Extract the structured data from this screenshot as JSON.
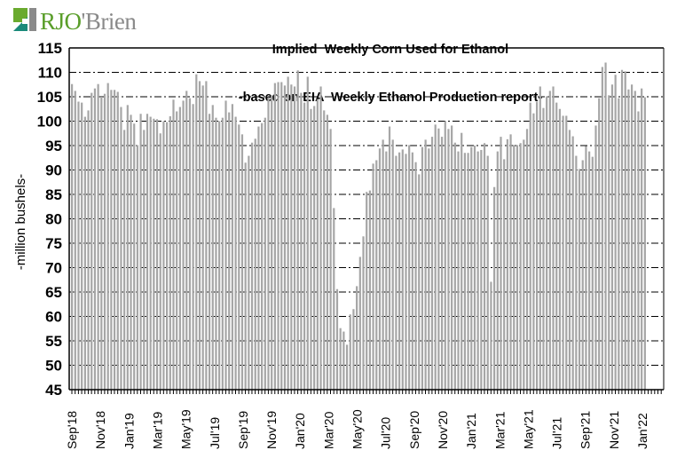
{
  "brand": {
    "logo_text_green": "RJO",
    "logo_text_gray": "'Brien",
    "green": "#5a9e2a",
    "teal": "#1a8a7a"
  },
  "chart_data": {
    "type": "bar",
    "title": "Implied  Weekly Corn Used for Ethanol",
    "subtitle": "-based on EIA  Weekly Ethanol Production report-",
    "xlabel": "",
    "ylabel": "-million bushels-",
    "ylim": [
      45,
      115
    ],
    "yticks": [
      45,
      50,
      55,
      60,
      65,
      70,
      75,
      80,
      85,
      90,
      95,
      100,
      105,
      110,
      115
    ],
    "grid": true,
    "bar_color": "#a6a6a6",
    "x_tick_labels": [
      "Sep'18",
      "Nov'18",
      "Jan'19",
      "Mar'19",
      "May'19",
      "Jul'19",
      "Sep'19",
      "Nov'19",
      "Jan'20",
      "Mar'20",
      "May'20",
      "Jul'20",
      "Sep'20",
      "Nov'20",
      "Jan'21",
      "Mar'21",
      "May'21",
      "Jul'21",
      "Sep'21",
      "Nov'21",
      "Jan'22"
    ],
    "frequency": "weekly",
    "values": [
      107.6,
      106.2,
      104.0,
      103.8,
      100.9,
      102.2,
      105.8,
      106.7,
      107.6,
      105.0,
      105.6,
      107.8,
      106.4,
      106.4,
      106.0,
      102.9,
      98.2,
      103.3,
      101.3,
      99.5,
      95.1,
      101.5,
      98.2,
      101.5,
      100.9,
      100.5,
      100.4,
      97.5,
      100.0,
      99.8,
      101.0,
      104.4,
      102.0,
      102.9,
      104.2,
      106.2,
      104.7,
      103.5,
      109.6,
      108.2,
      107.3,
      108.2,
      101.5,
      103.3,
      100.7,
      100.0,
      100.7,
      104.2,
      101.8,
      103.5,
      100.9,
      99.3,
      97.3,
      91.5,
      92.9,
      95.6,
      96.4,
      98.9,
      99.6,
      100.7,
      104.9,
      105.3,
      107.8,
      108.0,
      108.0,
      107.3,
      109.1,
      107.5,
      107.1,
      110.4,
      105.8,
      103.8,
      109.1,
      102.5,
      103.1,
      104.5,
      107.1,
      102.2,
      101.3,
      98.4,
      82.2,
      65.6,
      57.6,
      56.9,
      54.2,
      60.4,
      61.5,
      66.2,
      72.2,
      76.4,
      85.5,
      85.8,
      91.3,
      92.0,
      94.4,
      96.2,
      93.8,
      98.9,
      96.2,
      92.9,
      93.6,
      94.2,
      93.3,
      95.1,
      93.6,
      91.6,
      89.1,
      94.7,
      96.2,
      94.4,
      96.8,
      99.3,
      98.5,
      96.8,
      100.0,
      98.4,
      99.1,
      95.6,
      93.8,
      97.6,
      93.5,
      93.5,
      94.7,
      95.0,
      93.8,
      94.1,
      95.5,
      92.9,
      67.1,
      86.5,
      93.8,
      96.8,
      92.2,
      96.3,
      97.3,
      95.1,
      95.1,
      95.5,
      96.2,
      98.4,
      103.8,
      101.6,
      104.0,
      107.1,
      102.7,
      105.1,
      106.2,
      107.1,
      103.8,
      102.5,
      101.1,
      101.1,
      98.2,
      96.9,
      92.9,
      90.2,
      92.0,
      94.9,
      93.8,
      92.7,
      99.1,
      104.7,
      111.1,
      112.0,
      105.3,
      107.5,
      109.5,
      104.7,
      110.5,
      110.2,
      106.5,
      107.5,
      106.2,
      102.0,
      106.7,
      104.9
    ]
  }
}
